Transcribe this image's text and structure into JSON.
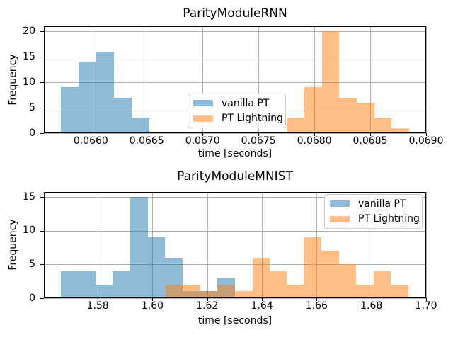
{
  "figure": {
    "background": "#ffffff",
    "grid_color": "#b0b0b0",
    "spine_color": "#000000",
    "text_color": "#000000",
    "series_colors": {
      "vanilla_pt_fill": "rgba(31, 119, 180, 0.5)",
      "pt_lightning_fill": "rgba(255, 127, 14, 0.5)",
      "vanilla_pt_solid": "#8fbbd9",
      "pt_lightning_solid": "#ffbf86",
      "overlap_blend": "#c79d74"
    }
  },
  "chart_data": [
    {
      "type": "histogram",
      "title": "ParityModuleRNN",
      "xlabel": "time [seconds]",
      "ylabel": "Frequency",
      "grid": true,
      "legend_position": "center",
      "xlim": [
        0.06558,
        0.069
      ],
      "ylim": [
        0,
        21
      ],
      "xtick_values": [
        0.066,
        0.0665,
        0.067,
        0.0675,
        0.068,
        0.0685,
        0.069
      ],
      "xtick_labels": [
        "0.0660",
        "0.0665",
        "0.0670",
        "0.0675",
        "0.0680",
        "0.0685",
        "0.0690"
      ],
      "ytick_values": [
        0,
        5,
        10,
        15,
        20
      ],
      "ytick_labels": [
        "0",
        "5",
        "10",
        "15",
        "20"
      ],
      "series": [
        {
          "name": "vanilla PT",
          "color": "rgba(31, 119, 180, 0.5)",
          "bin_start": 0.06573,
          "bin_width": 0.0001584,
          "counts": [
            9,
            14,
            16,
            7,
            3
          ]
        },
        {
          "name": "PT Lightning",
          "color": "rgba(255, 127, 14, 0.5)",
          "bin_start": 0.067757,
          "bin_width": 0.0001556,
          "counts": [
            3,
            9,
            20,
            7,
            6,
            3,
            1
          ]
        }
      ]
    },
    {
      "type": "histogram",
      "title": "ParityModuleMNIST",
      "xlabel": "time [seconds]",
      "ylabel": "Frequency",
      "grid": true,
      "legend_position": "upper right",
      "xlim": [
        1.5603,
        1.7
      ],
      "ylim": [
        0,
        15.75
      ],
      "xtick_values": [
        1.58,
        1.6,
        1.62,
        1.64,
        1.66,
        1.68,
        1.7
      ],
      "xtick_labels": [
        "1.58",
        "1.60",
        "1.62",
        "1.64",
        "1.66",
        "1.68",
        "1.70"
      ],
      "ytick_values": [
        0,
        5,
        10,
        15
      ],
      "ytick_labels": [
        "0",
        "5",
        "10",
        "15"
      ],
      "series": [
        {
          "name": "vanilla PT",
          "color": "rgba(31, 119, 180, 0.5)",
          "bin_start": 1.56643,
          "bin_width": 0.006364,
          "counts": [
            4,
            4,
            2,
            4,
            15,
            9,
            6,
            1,
            1,
            3
          ]
        },
        {
          "name": "PT Lightning",
          "color": "rgba(255, 127, 14, 0.5)",
          "bin_start": 1.60488,
          "bin_width": 0.006326,
          "counts": [
            2,
            2,
            1,
            2,
            1,
            6,
            4,
            2,
            9,
            7,
            5,
            2,
            4,
            2
          ]
        }
      ]
    }
  ]
}
